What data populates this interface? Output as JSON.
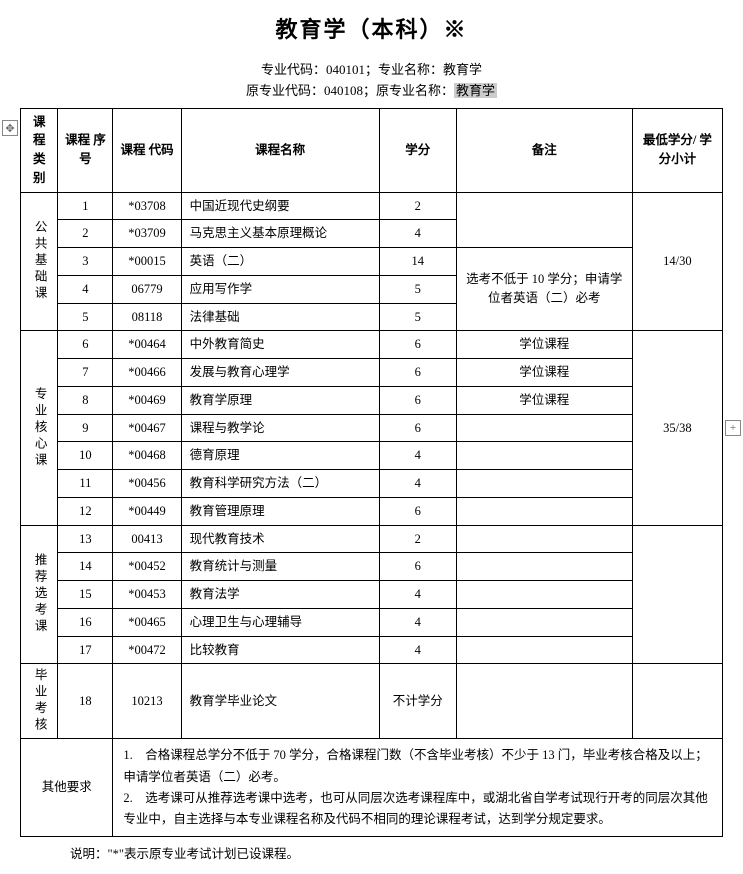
{
  "title": "教育学（本科）※",
  "subhead_line1_a": "专业代码：",
  "subhead_line1_b": "040101；专业名称：教育学",
  "subhead_line2_a": "原专业代码：040108；原专业名称：",
  "subhead_line2_hl": "教育学",
  "headers": {
    "category": "课程\n类别",
    "seq": "课程\n序号",
    "code": "课程\n代码",
    "name": "课程名称",
    "credit": "学分",
    "remark": "备注",
    "subtotal": "最低学分/\n学分小计"
  },
  "groups": [
    {
      "label": "公共基础课",
      "subtotal": "14/30",
      "rows": [
        {
          "seq": "1",
          "code": "*03708",
          "name": "中国近现代史纲要",
          "credit": "2",
          "remark": ""
        },
        {
          "seq": "2",
          "code": "*03709",
          "name": "马克思主义基本原理概论",
          "credit": "4",
          "remark": ""
        },
        {
          "seq": "3",
          "code": "*00015",
          "name": "英语（二）",
          "credit": "14",
          "remark_span": "选考不低于 10 学分；申请学位者英语（二）必考"
        },
        {
          "seq": "4",
          "code": "06779",
          "name": "应用写作学",
          "credit": "5"
        },
        {
          "seq": "5",
          "code": "08118",
          "name": "法律基础",
          "credit": "5"
        }
      ]
    },
    {
      "label": "专业核心课",
      "subtotal": "35/38",
      "rows": [
        {
          "seq": "6",
          "code": "*00464",
          "name": "中外教育简史",
          "credit": "6",
          "remark": "学位课程"
        },
        {
          "seq": "7",
          "code": "*00466",
          "name": "发展与教育心理学",
          "credit": "6",
          "remark": "学位课程"
        },
        {
          "seq": "8",
          "code": "*00469",
          "name": "教育学原理",
          "credit": "6",
          "remark": "学位课程"
        },
        {
          "seq": "9",
          "code": "*00467",
          "name": "课程与教学论",
          "credit": "6",
          "remark": ""
        },
        {
          "seq": "10",
          "code": "*00468",
          "name": "德育原理",
          "credit": "4",
          "remark": ""
        },
        {
          "seq": "11",
          "code": "*00456",
          "name": "教育科学研究方法（二）",
          "credit": "4",
          "remark": ""
        },
        {
          "seq": "12",
          "code": "*00449",
          "name": "教育管理原理",
          "credit": "6",
          "remark": ""
        }
      ]
    },
    {
      "label": "推荐选考课",
      "subtotal": "",
      "rows": [
        {
          "seq": "13",
          "code": "00413",
          "name": "现代教育技术",
          "credit": "2",
          "remark": ""
        },
        {
          "seq": "14",
          "code": "*00452",
          "name": "教育统计与测量",
          "credit": "6",
          "remark": ""
        },
        {
          "seq": "15",
          "code": "*00453",
          "name": "教育法学",
          "credit": "4",
          "remark": ""
        },
        {
          "seq": "16",
          "code": "*00465",
          "name": "心理卫生与心理辅导",
          "credit": "4",
          "remark": ""
        },
        {
          "seq": "17",
          "code": "*00472",
          "name": "比较教育",
          "credit": "4",
          "remark": ""
        }
      ]
    },
    {
      "label": "毕业考核",
      "subtotal": "",
      "rows": [
        {
          "seq": "18",
          "code": "10213",
          "name": "教育学毕业论文",
          "credit": "不计学分",
          "remark": ""
        }
      ]
    }
  ],
  "other_label": "其他要求",
  "other_text_1": "1.　合格课程总学分不低于 70 学分，合格课程门数（不含毕业考核）不少于 13 门，毕业考核合格及以上；申请学位者英语（二）必考。",
  "other_text_2": "2.　选考课可从推荐选考课中选考，也可从同层次选考课程库中，或湖北省自学考试现行开考的同层次其他专业中，自主选择与本专业课程名称及代码不相同的理论课程考试，达到学分规定要求。",
  "footnote": "说明：\"*\"表示原专业考试计划已设课程。"
}
